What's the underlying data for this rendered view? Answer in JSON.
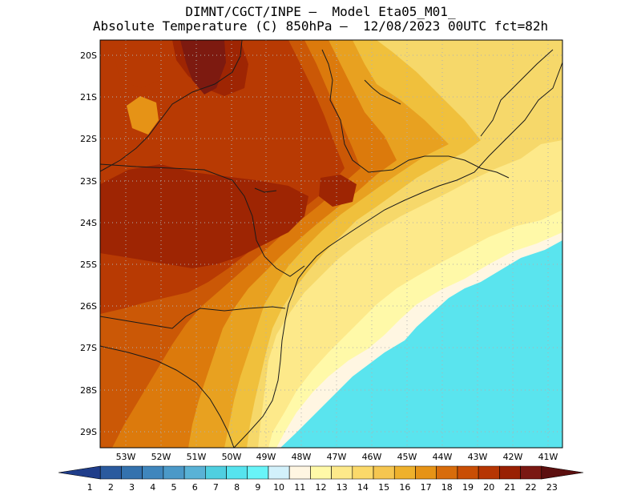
{
  "header": {
    "line1": "DIMNT/CGCT/INPE –  Model Eta05_M01_",
    "line2": "Absolute Temperature (C) 850hPa –  12/08/2023 00UTC fct=82h"
  },
  "map": {
    "lat_labels": [
      "20S",
      "21S",
      "22S",
      "23S",
      "24S",
      "25S",
      "26S",
      "27S",
      "28S",
      "29S"
    ],
    "lon_labels": [
      "53W",
      "52W",
      "51W",
      "50W",
      "49W",
      "48W",
      "47W",
      "46W",
      "45W",
      "44W",
      "43W",
      "42W",
      "41W"
    ]
  },
  "colorbar": {
    "labels": [
      "1",
      "2",
      "3",
      "4",
      "5",
      "6",
      "7",
      "8",
      "9",
      "10",
      "11",
      "12",
      "13",
      "14",
      "15",
      "16",
      "17",
      "18",
      "19",
      "20",
      "21",
      "22",
      "23"
    ],
    "colors": [
      "#1f3d8a",
      "#2a5a9e",
      "#3472ae",
      "#3f86bd",
      "#4b99c8",
      "#59b2d6",
      "#4fcfe0",
      "#56e3ee",
      "#68f4f8",
      "#d2f1fb",
      "#fff6e2",
      "#fff9a8",
      "#fde98a",
      "#fbd96a",
      "#f5c650",
      "#eeb12c",
      "#e69316",
      "#d86c0b",
      "#c94e05",
      "#b63603",
      "#992002",
      "#7a1812",
      "#5c0f0f"
    ]
  }
}
